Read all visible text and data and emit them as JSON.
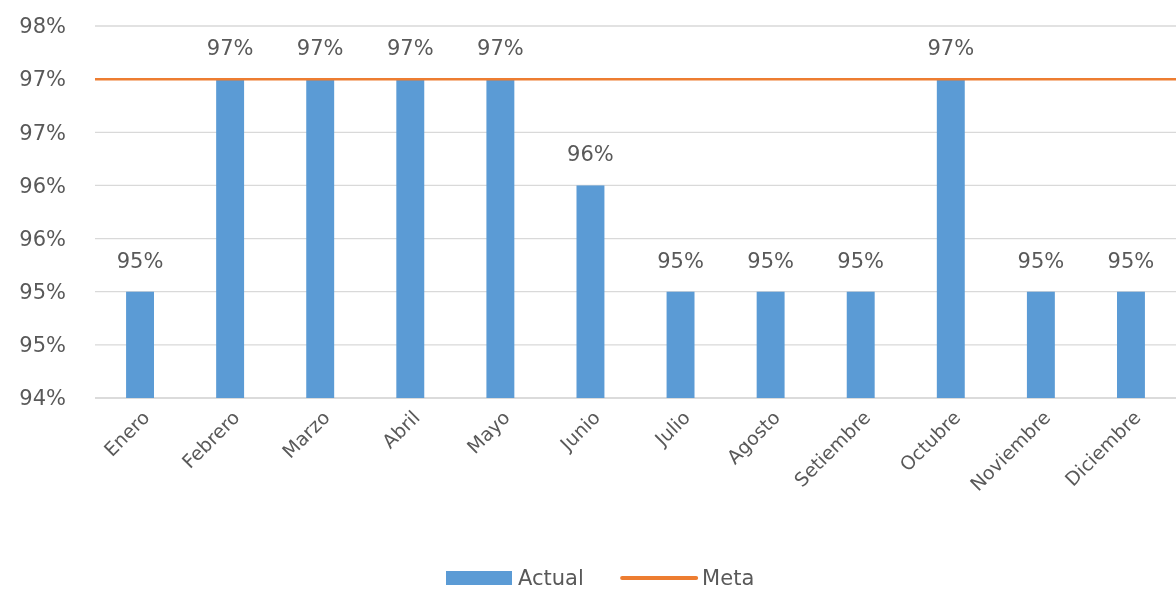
{
  "chart_data": {
    "type": "bar",
    "categories": [
      "Enero",
      "Febrero",
      "Marzo",
      "Abril",
      "Mayo",
      "Junio",
      "Julio",
      "Agosto",
      "Setiembre",
      "Octubre",
      "Noviembre",
      "Diciembre"
    ],
    "series": [
      {
        "name": "Actual",
        "color": "#5b9bd5",
        "values": [
          95,
          97,
          97,
          97,
          97,
          96,
          95,
          95,
          95,
          97,
          95,
          95
        ],
        "value_labels": [
          "95%",
          "97%",
          "97%",
          "97%",
          "97%",
          "96%",
          "95%",
          "95%",
          "95%",
          "97%",
          "95%",
          "95%"
        ]
      }
    ],
    "ylim": [
      94,
      97.5
    ],
    "yticks": [
      {
        "value": 94,
        "label": "94%"
      },
      {
        "value": 94.5,
        "label": "95%"
      },
      {
        "value": 95,
        "label": "95%"
      },
      {
        "value": 95.5,
        "label": "96%"
      },
      {
        "value": 96,
        "label": "96%"
      },
      {
        "value": 96.5,
        "label": "97%"
      },
      {
        "value": 97,
        "label": "97%"
      },
      {
        "value": 97.5,
        "label": "98%"
      }
    ],
    "grid": "y",
    "legend": "bottom",
    "ref_lines": [
      {
        "axis": "y",
        "value": 97,
        "label": "Meta",
        "color": "#ed7d31"
      }
    ]
  }
}
